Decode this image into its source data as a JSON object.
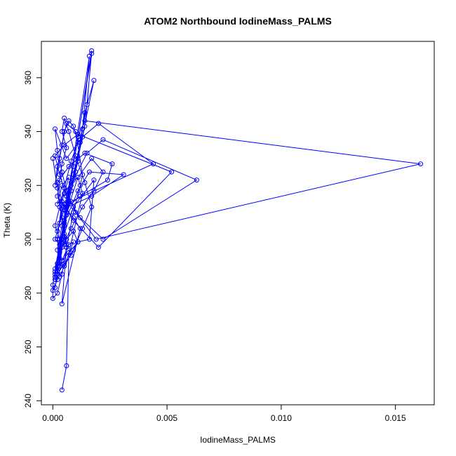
{
  "chart_data": {
    "type": "scatter",
    "title": "ATOM2 Northbound IodineMass_PALMS",
    "xlabel": "IodineMass_PALMS",
    "ylabel": "Theta (K)",
    "xlim": [
      -0.0005,
      0.0167
    ],
    "ylim": [
      238.5,
      373.5
    ],
    "xticks": [
      0.0,
      0.005,
      0.01,
      0.015
    ],
    "xtick_labels": [
      "0.000",
      "0.005",
      "0.010",
      "0.015"
    ],
    "yticks": [
      240,
      260,
      280,
      300,
      320,
      340,
      360
    ],
    "ytick_labels": [
      "240",
      "260",
      "280",
      "300",
      "320",
      "340",
      "360"
    ],
    "grid": false,
    "legend": "none",
    "marker": "open-circle",
    "connect_points": true,
    "color": "#0000ff",
    "series": [
      {
        "points": [
          [
            0.0001,
            287
          ],
          [
            0.0003,
            292
          ],
          [
            0.0005,
            301
          ],
          [
            0.0006,
            310
          ],
          [
            0.0008,
            320
          ],
          [
            0.0011,
            330
          ],
          [
            0.0014,
            342
          ],
          [
            0.0017,
            369
          ],
          [
            0.0002,
            291
          ],
          [
            0.0004,
            299
          ],
          [
            0.0006,
            309
          ],
          [
            0.0008,
            318
          ],
          [
            0.0011,
            329
          ],
          [
            0.0013,
            341
          ],
          [
            0.0016,
            368
          ],
          [
            0.0001,
            286
          ],
          [
            0.0003,
            296
          ],
          [
            0.0005,
            305
          ],
          [
            0.0007,
            314
          ],
          [
            0.001,
            325
          ],
          [
            0.0012,
            337
          ],
          [
            0.0015,
            350
          ],
          [
            0.0017,
            370
          ],
          [
            0.0002,
            290
          ],
          [
            0.0004,
            300
          ],
          [
            0.0006,
            312
          ],
          [
            0.0009,
            324
          ],
          [
            0.0012,
            336
          ],
          [
            0.0014,
            347
          ],
          [
            0.0018,
            359
          ],
          [
            0.0001,
            289
          ],
          [
            0.0003,
            298
          ],
          [
            0.0005,
            307
          ],
          [
            0.0006,
            316
          ],
          [
            0.0009,
            327
          ],
          [
            0.0011,
            338
          ],
          [
            0.0014,
            344
          ],
          [
            0.0161,
            328
          ],
          [
            0.0019,
            300
          ],
          [
            0.001,
            310
          ],
          [
            0.0006,
            318
          ],
          [
            0.0004,
            325
          ],
          [
            0.0002,
            333
          ],
          [
            0.0001,
            341
          ],
          [
            0.0006,
            330
          ],
          [
            0.0013,
            338
          ],
          [
            0.002,
            343
          ],
          [
            0.0044,
            328
          ],
          [
            0.0008,
            314
          ],
          [
            0.0004,
            305
          ],
          [
            0.0002,
            296
          ],
          [
            0.0005,
            306
          ],
          [
            0.0011,
            318
          ],
          [
            0.0016,
            325
          ],
          [
            0.0031,
            324
          ],
          [
            0.0017,
            316
          ],
          [
            0.0004,
            311
          ],
          [
            0.0002,
            303
          ],
          [
            0.0005,
            313
          ],
          [
            0.0009,
            322
          ],
          [
            0.0015,
            332
          ],
          [
            0.0022,
            337
          ],
          [
            0.0063,
            322
          ],
          [
            0.0022,
            300
          ],
          [
            0.0012,
            308
          ],
          [
            0.0006,
            316
          ],
          [
            0.0003,
            324
          ],
          [
            0.0001,
            331
          ],
          [
            0.0005,
            335
          ],
          [
            0.0011,
            339
          ],
          [
            0.0052,
            325
          ],
          [
            0.002,
            297
          ],
          [
            0.0009,
            307
          ],
          [
            0.0004,
            314
          ],
          [
            0.0002,
            321
          ],
          [
            0.0007,
            327
          ],
          [
            0.0014,
            332
          ],
          [
            0.0026,
            328
          ],
          [
            0.0024,
            322
          ],
          [
            0.0012,
            316
          ],
          [
            0.0005,
            311
          ],
          [
            0.0003,
            306
          ],
          [
            0.0001,
            300
          ],
          [
            0.0004,
            297
          ],
          [
            0.0008,
            304
          ],
          [
            0.0013,
            312
          ],
          [
            0.0018,
            318
          ],
          [
            0.0022,
            325
          ],
          [
            0.0017,
            330
          ],
          [
            0.0011,
            323
          ],
          [
            0.0006,
            310
          ],
          [
            0.0003,
            293
          ],
          [
            0.0002,
            288
          ],
          [
            0.0004,
            292
          ],
          [
            0.0007,
            295
          ],
          [
            0.0011,
            299
          ],
          [
            0.0016,
            300
          ],
          [
            0.0018,
            322
          ],
          [
            0.0009,
            312
          ],
          [
            0.0005,
            302
          ],
          [
            0.0003,
            290
          ],
          [
            0.0001,
            285
          ],
          [
            0.0003,
            286
          ],
          [
            0.0005,
            290
          ],
          [
            0.0009,
            296
          ],
          [
            0.0013,
            304
          ],
          [
            0.0017,
            312
          ],
          [
            0.0014,
            321
          ],
          [
            0.001,
            331
          ],
          [
            0.0007,
            340
          ],
          [
            0.0005,
            345
          ],
          [
            0.0004,
            340
          ],
          [
            0.0006,
            334
          ],
          [
            0.0004,
            328
          ],
          [
            0.0003,
            322
          ],
          [
            0.0002,
            316
          ],
          [
            0.0005,
            312
          ],
          [
            0.0009,
            308
          ],
          [
            0.0012,
            304
          ],
          [
            0.0004,
            276
          ],
          [
            0.0006,
            297
          ],
          [
            0.0009,
            310
          ],
          [
            0.0012,
            320
          ],
          [
            0.0013,
            324
          ],
          [
            0.001,
            340
          ],
          [
            0.0006,
            343
          ],
          [
            0.0004,
            335
          ],
          [
            0.0002,
            327
          ],
          [
            0.0001,
            320
          ],
          [
            0.0003,
            330
          ],
          [
            0.0005,
            340
          ],
          [
            0.0007,
            344
          ],
          [
            0.0009,
            342
          ],
          [
            0.0011,
            336
          ],
          [
            0.0008,
            329
          ],
          [
            0.0005,
            319
          ],
          [
            0.0003,
            312
          ],
          [
            0.0001,
            305
          ],
          [
            0.0003,
            300
          ],
          [
            0.0006,
            298
          ],
          [
            0.0,
            330
          ],
          [
            0.0002,
            319
          ],
          [
            0.0004,
            308
          ],
          [
            0.0006,
            297
          ],
          [
            0.0004,
            287
          ],
          [
            0.0002,
            280
          ],
          [
            0.0,
            278
          ],
          [
            0.0,
            283
          ],
          [
            0.0001,
            288
          ],
          [
            0.0003,
            295
          ],
          [
            0.0006,
            300
          ],
          [
            0.0009,
            303
          ],
          [
            0.0011,
            299
          ],
          [
            0.0008,
            294
          ],
          [
            0.0005,
            291
          ],
          [
            0.0002,
            287
          ],
          [
            0.0001,
            282
          ],
          [
            0.0,
            281
          ],
          [
            0.0002,
            285
          ],
          [
            0.0004,
            292
          ],
          [
            0.0007,
            298
          ],
          [
            0.0009,
            299
          ],
          [
            0.0005,
            290
          ],
          [
            0.0003,
            292
          ],
          [
            0.0002,
            300
          ],
          [
            0.0004,
            314
          ],
          [
            0.0007,
            323
          ],
          [
            0.0004,
            320
          ],
          [
            0.0002,
            313
          ],
          [
            0.0005,
            317
          ],
          [
            0.0008,
            321
          ],
          [
            0.0011,
            323
          ],
          [
            0.0013,
            317
          ],
          [
            0.0007,
            295
          ],
          [
            0.0006,
            253
          ],
          [
            0.0004,
            244
          ]
        ]
      }
    ]
  }
}
